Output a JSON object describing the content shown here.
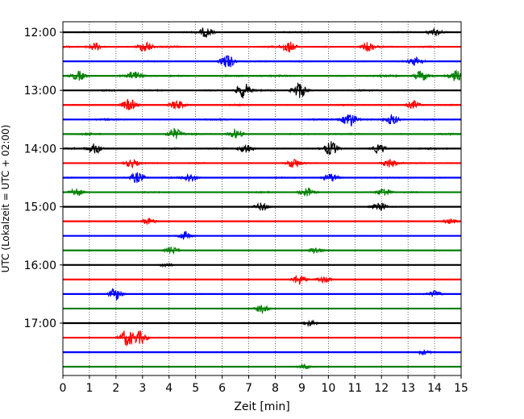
{
  "chart_data": {
    "type": "line",
    "xlabel": "Zeit  [min]",
    "ylabel": "UTC (Lokalzeit = UTC + 02:00)",
    "xlim": [
      0,
      15
    ],
    "x_ticks": [
      0,
      1,
      2,
      3,
      4,
      5,
      6,
      7,
      8,
      9,
      10,
      11,
      12,
      13,
      14,
      15
    ],
    "x_tick_labels": [
      "0",
      "1",
      "2",
      "3",
      "4",
      "5",
      "6",
      "7",
      "8",
      "9",
      "10",
      "11",
      "12",
      "13",
      "14",
      "15"
    ],
    "y_tick_labels": [
      "12:00",
      "13:00",
      "14:00",
      "15:00",
      "16:00",
      "17:00"
    ],
    "grid": "vertical dotted",
    "colors": [
      "#000000",
      "#ff0000",
      "#0000ff",
      "#008000"
    ],
    "series": [
      {
        "start": "12:00",
        "color": "#000000",
        "amplitude": 0.5,
        "events": [
          [
            5.4,
            1.2
          ],
          [
            14.0,
            0.8
          ]
        ]
      },
      {
        "start": "12:15",
        "color": "#ff0000",
        "amplitude": 0.6,
        "events": [
          [
            1.2,
            1.0
          ],
          [
            3.1,
            1.4
          ],
          [
            8.5,
            1.3
          ],
          [
            11.5,
            1.1
          ]
        ]
      },
      {
        "start": "12:30",
        "color": "#0000ff",
        "amplitude": 0.5,
        "events": [
          [
            6.2,
            1.8
          ],
          [
            13.3,
            1.0
          ]
        ]
      },
      {
        "start": "12:45",
        "color": "#008000",
        "amplitude": 0.7,
        "events": [
          [
            0.6,
            1.1
          ],
          [
            2.7,
            1.0
          ],
          [
            13.5,
            1.3
          ],
          [
            14.8,
            1.4
          ]
        ]
      },
      {
        "start": "13:00",
        "color": "#000000",
        "amplitude": 0.6,
        "events": [
          [
            6.8,
            1.8
          ],
          [
            8.9,
            2.0
          ]
        ]
      },
      {
        "start": "13:15",
        "color": "#ff0000",
        "amplitude": 0.5,
        "events": [
          [
            2.5,
            1.4
          ],
          [
            4.3,
            1.2
          ],
          [
            13.2,
            1.0
          ]
        ]
      },
      {
        "start": "13:30",
        "color": "#0000ff",
        "amplitude": 0.6,
        "events": [
          [
            10.8,
            1.8
          ],
          [
            12.4,
            1.2
          ]
        ]
      },
      {
        "start": "13:45",
        "color": "#008000",
        "amplitude": 0.6,
        "events": [
          [
            4.2,
            1.4
          ],
          [
            6.5,
            1.0
          ]
        ]
      },
      {
        "start": "14:00",
        "color": "#000000",
        "amplitude": 0.6,
        "events": [
          [
            1.2,
            1.2
          ],
          [
            6.9,
            1.2
          ],
          [
            10.1,
            1.6
          ],
          [
            11.9,
            1.0
          ]
        ]
      },
      {
        "start": "14:15",
        "color": "#ff0000",
        "amplitude": 0.5,
        "events": [
          [
            2.6,
            1.0
          ],
          [
            8.7,
            1.1
          ],
          [
            12.3,
            1.1
          ]
        ]
      },
      {
        "start": "14:30",
        "color": "#0000ff",
        "amplitude": 0.5,
        "events": [
          [
            2.8,
            1.3
          ],
          [
            4.8,
            1.1
          ],
          [
            10.1,
            1.0
          ]
        ]
      },
      {
        "start": "14:45",
        "color": "#008000",
        "amplitude": 0.5,
        "events": [
          [
            0.5,
            1.1
          ],
          [
            9.2,
            1.2
          ],
          [
            12.1,
            1.0
          ]
        ]
      },
      {
        "start": "15:00",
        "color": "#000000",
        "amplitude": 0.3,
        "events": [
          [
            7.5,
            1.0
          ],
          [
            11.9,
            1.3
          ]
        ]
      },
      {
        "start": "15:15",
        "color": "#ff0000",
        "amplitude": 0.25,
        "events": [
          [
            3.2,
            0.8
          ],
          [
            14.6,
            0.7
          ]
        ]
      },
      {
        "start": "15:30",
        "color": "#0000ff",
        "amplitude": 0.2,
        "events": [
          [
            4.6,
            1.0
          ]
        ]
      },
      {
        "start": "15:45",
        "color": "#008000",
        "amplitude": 0.3,
        "events": [
          [
            4.1,
            0.9
          ],
          [
            9.5,
            0.8
          ]
        ]
      },
      {
        "start": "16:00",
        "color": "#000000",
        "amplitude": 0.2,
        "events": [
          [
            3.9,
            0.5
          ]
        ]
      },
      {
        "start": "16:15",
        "color": "#ff0000",
        "amplitude": 0.25,
        "events": [
          [
            8.9,
            1.3
          ],
          [
            9.8,
            0.8
          ]
        ]
      },
      {
        "start": "16:30",
        "color": "#0000ff",
        "amplitude": 0.3,
        "events": [
          [
            2.0,
            1.5
          ],
          [
            14.0,
            0.8
          ]
        ]
      },
      {
        "start": "16:45",
        "color": "#008000",
        "amplitude": 0.25,
        "events": [
          [
            7.5,
            1.0
          ]
        ]
      },
      {
        "start": "17:00",
        "color": "#000000",
        "amplitude": 0.2,
        "events": [
          [
            9.3,
            0.7
          ]
        ]
      },
      {
        "start": "17:15",
        "color": "#ff0000",
        "amplitude": 0.25,
        "events": [
          [
            2.4,
            2.0
          ],
          [
            2.9,
            1.6
          ]
        ]
      },
      {
        "start": "17:30",
        "color": "#0000ff",
        "amplitude": 0.2,
        "events": [
          [
            13.6,
            0.6
          ]
        ]
      },
      {
        "start": "17:45",
        "color": "#008000",
        "amplitude": 0.25,
        "events": [
          [
            9.1,
            0.5
          ]
        ]
      }
    ]
  }
}
